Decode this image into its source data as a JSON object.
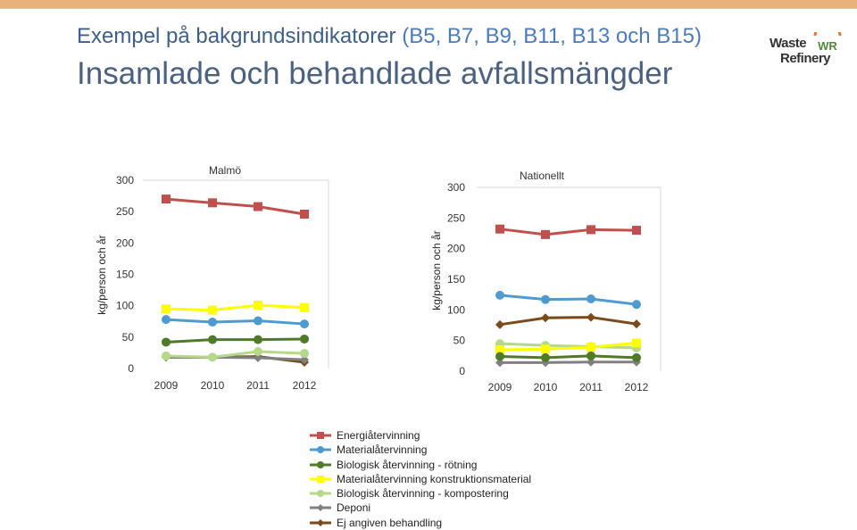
{
  "header": {
    "title_main": "Exempel på bakgrundsindikatorer",
    "title_codes": "(B5, B7, B9, B11, B13 och B15)",
    "subtitle": "Insamlade och behandlade avfallsmängder"
  },
  "logo": {
    "line1": "Waste",
    "line2": "Refinery",
    "mark": "WR"
  },
  "colors": {
    "Energiåtervinning": "#c0504d",
    "Materialåtervinning": "#4f9bd0",
    "Biologisk återvinning - rötning": "#4f7a28",
    "Materialåtervinning konstruktionsmaterial": "#ffff00",
    "Biologisk återvinning - kompostering": "#b3d989",
    "Deponi": "#808080",
    "Ej angiven behandling": "#7a4a1a"
  },
  "chart_data": [
    {
      "type": "line",
      "title": "Malmö",
      "ylabel": "kg/person och år",
      "categories": [
        "2009",
        "2010",
        "2011",
        "2012"
      ],
      "yticks": [
        "0",
        "50",
        "100",
        "150",
        "200",
        "250",
        "300"
      ],
      "ylim": [
        0,
        300
      ],
      "series": [
        {
          "name": "Energiåtervinning",
          "marker": "square",
          "values": [
            270,
            264,
            258,
            246
          ]
        },
        {
          "name": "Materialåtervinning",
          "marker": "circle",
          "values": [
            78,
            74,
            76,
            71
          ]
        },
        {
          "name": "Biologisk återvinning - rötning",
          "marker": "circle",
          "values": [
            42,
            46,
            46,
            47
          ]
        },
        {
          "name": "Materialåtervinning konstruktionsmaterial",
          "marker": "square",
          "values": [
            95,
            93,
            101,
            97
          ]
        },
        {
          "name": "Biologisk återvinning - kompostering",
          "marker": "circle",
          "values": [
            20,
            18,
            27,
            24
          ]
        },
        {
          "name": "Deponi",
          "marker": "diamond",
          "values": [
            18,
            18,
            17,
            14
          ]
        },
        {
          "name": "Ej angiven behandling",
          "marker": "diamond",
          "values": [
            18,
            18,
            19,
            10
          ]
        }
      ]
    },
    {
      "type": "line",
      "title": "Nationellt",
      "ylabel": "kg/person och år",
      "categories": [
        "2009",
        "2010",
        "2011",
        "2012"
      ],
      "yticks": [
        "0",
        "50",
        "100",
        "150",
        "200",
        "250",
        "300"
      ],
      "ylim": [
        0,
        300
      ],
      "series": [
        {
          "name": "Energiåtervinning",
          "marker": "square",
          "values": [
            232,
            223,
            231,
            230
          ]
        },
        {
          "name": "Materialåtervinning",
          "marker": "circle",
          "values": [
            124,
            117,
            118,
            109
          ]
        },
        {
          "name": "Biologisk återvinning - rötning",
          "marker": "circle",
          "values": [
            24,
            22,
            25,
            22
          ]
        },
        {
          "name": "Materialåtervinning konstruktionsmaterial",
          "marker": "square",
          "values": [
            35,
            36,
            39,
            46
          ]
        },
        {
          "name": "Biologisk återvinning - kompostering",
          "marker": "circle",
          "values": [
            45,
            42,
            40,
            38
          ]
        },
        {
          "name": "Deponi",
          "marker": "diamond",
          "values": [
            14,
            14,
            15,
            15
          ]
        },
        {
          "name": "Ej angiven behandling",
          "marker": "diamond",
          "values": [
            76,
            87,
            88,
            77
          ]
        }
      ]
    }
  ]
}
